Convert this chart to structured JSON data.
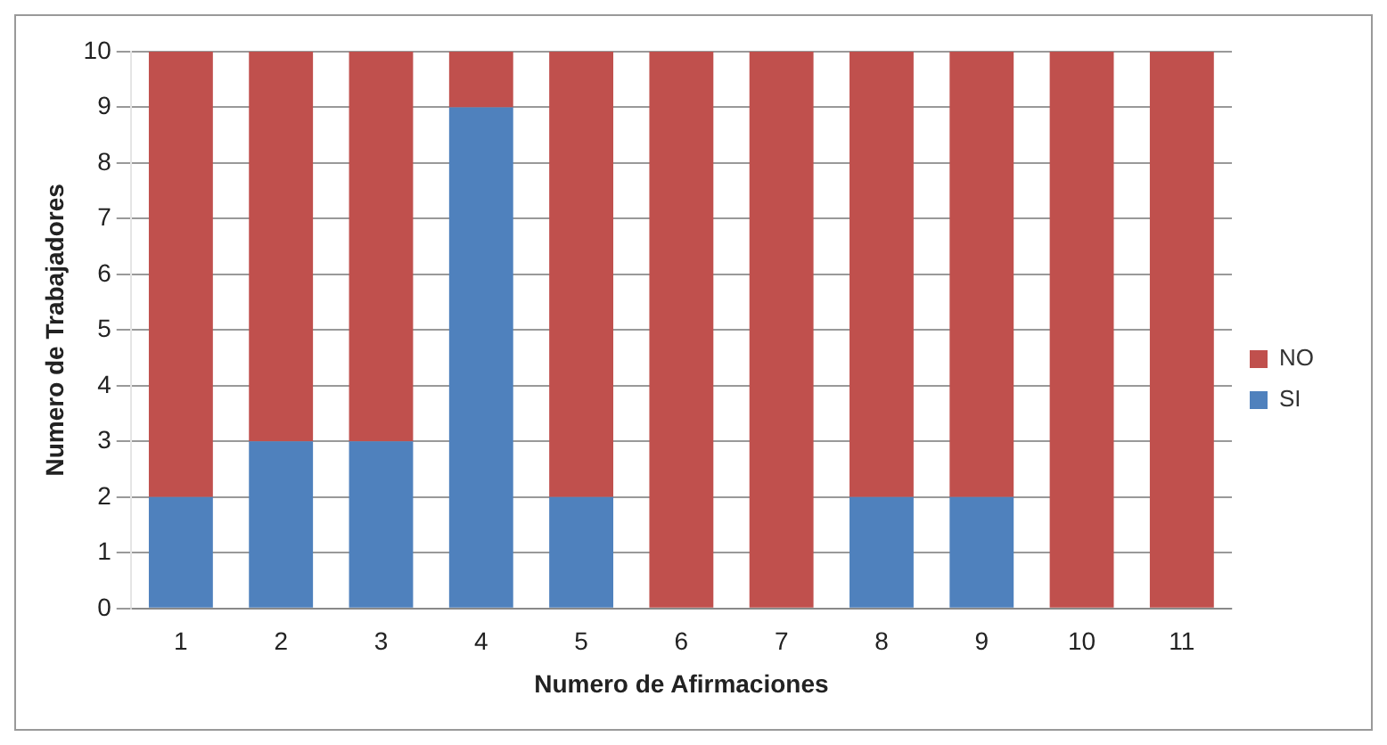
{
  "chart_data": {
    "type": "bar",
    "stacked": true,
    "xlabel": "Numero de Afirmaciones",
    "ylabel": "Numero de Trabajadores",
    "categories": [
      "1",
      "2",
      "3",
      "4",
      "5",
      "6",
      "7",
      "8",
      "9",
      "10",
      "11"
    ],
    "series": [
      {
        "name": "SI",
        "color": "#4f81bd",
        "values": [
          2,
          3,
          3,
          9,
          2,
          0,
          0,
          2,
          2,
          0,
          0
        ]
      },
      {
        "name": "NO",
        "color": "#c0504d",
        "values": [
          8,
          7,
          7,
          1,
          8,
          10,
          10,
          8,
          8,
          10,
          10
        ]
      }
    ],
    "ylim": [
      0,
      10
    ],
    "yticks": [
      0,
      1,
      2,
      3,
      4,
      5,
      6,
      7,
      8,
      9,
      10
    ],
    "grid": "y",
    "legend": "right"
  }
}
